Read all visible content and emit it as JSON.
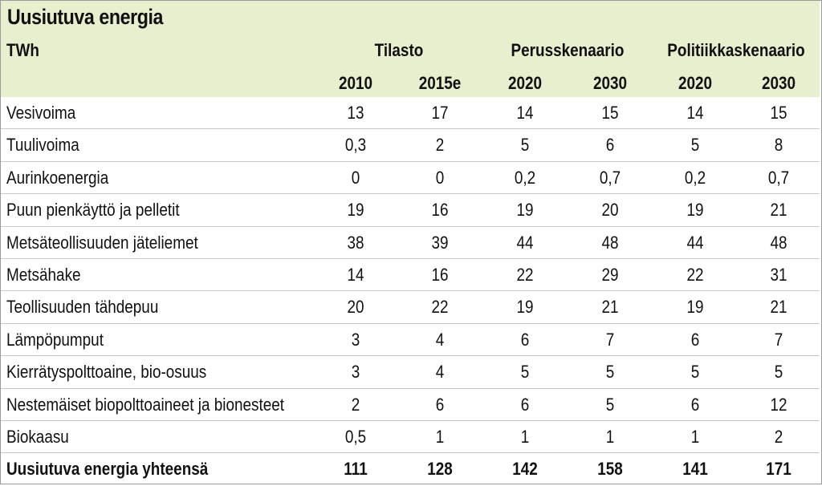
{
  "title": "Uusiutuva energia",
  "unit": "TWh",
  "groups": [
    "Tilasto",
    "Perusskenaario",
    "Politiikkaskenaario"
  ],
  "years": [
    "2010",
    "2015e",
    "2020",
    "2030",
    "2020",
    "2030"
  ],
  "rows": [
    {
      "label": "Vesivoima",
      "values": [
        "13",
        "17",
        "14",
        "15",
        "14",
        "15"
      ]
    },
    {
      "label": "Tuulivoima",
      "values": [
        "0,3",
        "2",
        "5",
        "6",
        "5",
        "8"
      ]
    },
    {
      "label": "Aurinkoenergia",
      "values": [
        "0",
        "0",
        "0,2",
        "0,7",
        "0,2",
        "0,7"
      ]
    },
    {
      "label": "Puun pienkäyttö ja pelletit",
      "values": [
        "19",
        "16",
        "19",
        "20",
        "19",
        "21"
      ]
    },
    {
      "label": "Metsäteollisuuden jäteliemet",
      "values": [
        "38",
        "39",
        "44",
        "48",
        "44",
        "48"
      ]
    },
    {
      "label": "Metsähake",
      "values": [
        "14",
        "16",
        "22",
        "29",
        "22",
        "31"
      ]
    },
    {
      "label": "Teollisuuden tähdepuu",
      "values": [
        "20",
        "22",
        "19",
        "21",
        "19",
        "21"
      ]
    },
    {
      "label": "Lämpöpumput",
      "values": [
        "3",
        "4",
        "6",
        "7",
        "6",
        "7"
      ]
    },
    {
      "label": "Kierrätyspolttoaine, bio-osuus",
      "values": [
        "3",
        "4",
        "5",
        "5",
        "5",
        "5"
      ]
    },
    {
      "label": "Nestemäiset biopolttoaineet ja bionesteet",
      "values": [
        "2",
        "6",
        "6",
        "5",
        "6",
        "12"
      ]
    },
    {
      "label": "Biokaasu",
      "values": [
        "0,5",
        "1",
        "1",
        "1",
        "1",
        "2"
      ]
    }
  ],
  "total": {
    "label": "Uusiutuva energia yhteensä",
    "values": [
      "111",
      "128",
      "142",
      "158",
      "141",
      "171"
    ]
  },
  "colors": {
    "header_background": "#e7efcf",
    "rule": "#c8c8c8"
  }
}
